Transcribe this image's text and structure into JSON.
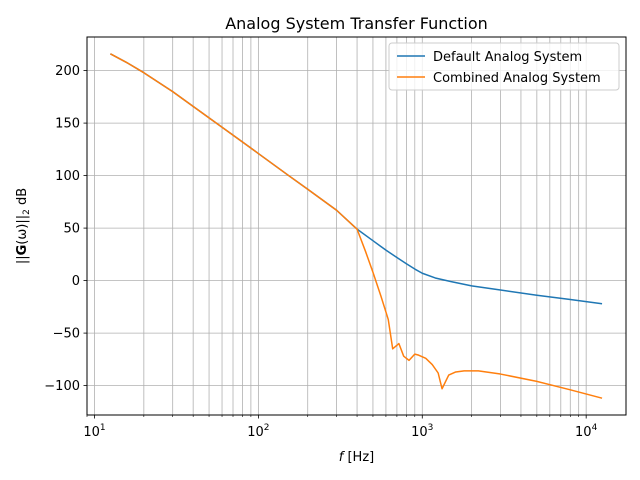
{
  "chart_data": {
    "type": "line",
    "title": "Analog System Transfer Function",
    "xlabel": {
      "italic": "f",
      "rest": " [Hz]"
    },
    "ylabel": {
      "pre": "||",
      "bold": "G",
      "mid": "(ω)||",
      "sub": "2",
      "post": " dB"
    },
    "xscale": "log",
    "xlim": [
      9,
      17500
    ],
    "ylim": [
      -128,
      232
    ],
    "grid": {
      "major": true,
      "minor_x": true
    },
    "legend": {
      "position": "top-right"
    },
    "xticks": [
      {
        "value": 10,
        "base": "10",
        "exp": "1"
      },
      {
        "value": 100,
        "base": "10",
        "exp": "2"
      },
      {
        "value": 1000,
        "base": "10",
        "exp": "3"
      },
      {
        "value": 10000,
        "base": "10",
        "exp": "4"
      }
    ],
    "yticks": [
      {
        "value": 200,
        "label": "200"
      },
      {
        "value": 150,
        "label": "150"
      },
      {
        "value": 100,
        "label": "100"
      },
      {
        "value": 50,
        "label": "50"
      },
      {
        "value": 0,
        "label": "0"
      },
      {
        "value": -50,
        "label": "−50"
      },
      {
        "value": -100,
        "label": "−100"
      }
    ],
    "series": [
      {
        "name": "Default Analog System",
        "color": "#1f77b4",
        "points": [
          [
            12.5,
            216
          ],
          [
            16,
            207
          ],
          [
            20,
            198
          ],
          [
            30,
            180
          ],
          [
            50,
            155
          ],
          [
            80,
            132
          ],
          [
            100,
            121
          ],
          [
            150,
            101
          ],
          [
            200,
            87
          ],
          [
            300,
            67
          ],
          [
            400,
            49
          ],
          [
            500,
            38
          ],
          [
            600,
            29
          ],
          [
            700,
            22
          ],
          [
            800,
            16
          ],
          [
            900,
            11
          ],
          [
            1000,
            7
          ],
          [
            1200,
            2.5
          ],
          [
            1500,
            -1
          ],
          [
            2000,
            -5
          ],
          [
            3000,
            -9
          ],
          [
            5000,
            -14
          ],
          [
            8000,
            -18
          ],
          [
            12500,
            -22
          ]
        ]
      },
      {
        "name": "Combined Analog System",
        "color": "#ff7f0e",
        "points": [
          [
            12.5,
            216
          ],
          [
            16,
            207
          ],
          [
            20,
            198
          ],
          [
            30,
            180
          ],
          [
            50,
            155
          ],
          [
            80,
            132
          ],
          [
            100,
            121
          ],
          [
            150,
            101
          ],
          [
            200,
            87
          ],
          [
            300,
            67
          ],
          [
            400,
            49
          ],
          [
            450,
            28
          ],
          [
            500,
            8
          ],
          [
            560,
            -15
          ],
          [
            620,
            -37
          ],
          [
            660,
            -65
          ],
          [
            720,
            -60
          ],
          [
            770,
            -72
          ],
          [
            830,
            -76
          ],
          [
            900,
            -70
          ],
          [
            950,
            -71
          ],
          [
            1050,
            -74
          ],
          [
            1150,
            -80
          ],
          [
            1250,
            -88
          ],
          [
            1320,
            -103
          ],
          [
            1450,
            -90
          ],
          [
            1600,
            -87
          ],
          [
            1800,
            -86
          ],
          [
            2200,
            -86
          ],
          [
            3000,
            -89
          ],
          [
            5000,
            -96
          ],
          [
            8000,
            -104
          ],
          [
            12500,
            -112
          ]
        ]
      }
    ]
  }
}
